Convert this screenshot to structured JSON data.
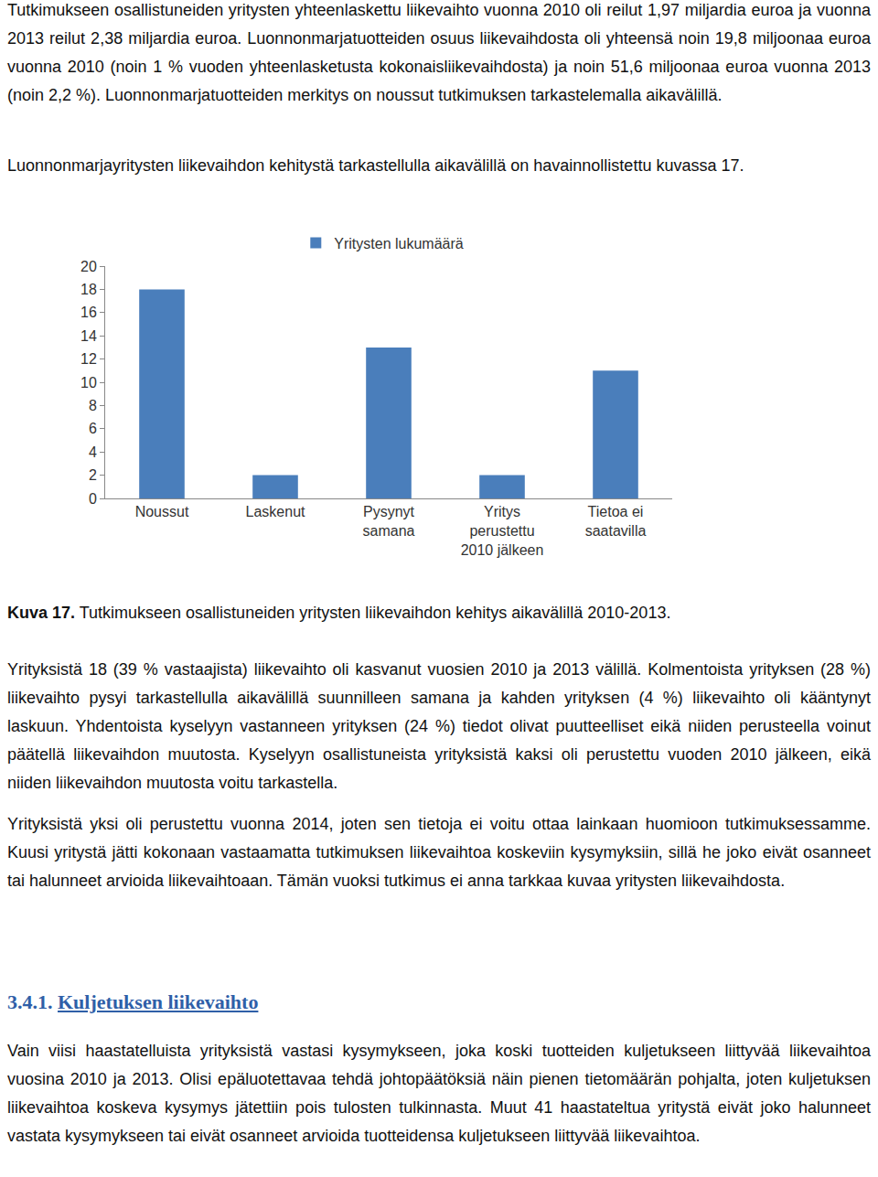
{
  "document": {
    "paragraph_1": "Tutkimukseen osallistuneiden yritysten yhteenlaskettu liikevaihto vuonna 2010 oli reilut 1,97 miljardia euroa ja vuonna 2013 reilut 2,38 miljardia euroa. Luonnonmarjatuotteiden osuus liikevaihdosta oli yhteensä noin 19,8 miljoonaa euroa vuonna 2010 (noin 1 % vuoden yhteenlasketusta kokonaisliikevaihdosta) ja noin 51,6 miljoonaa euroa vuonna 2013 (noin 2,2 %). Luonnonmarjatuotteiden merkitys on noussut tutkimuksen tarkastelemalla aikavälillä.",
    "paragraph_2": "Luonnonmarjayritysten liikevaihdon kehitystä tarkastellulla aikavälillä on havainnollistettu kuvassa 17.",
    "caption": {
      "label": "Kuva 17.",
      "text": "Tutkimukseen osallistuneiden yritysten liikevaihdon kehitys aikavälillä 2010-2013."
    },
    "paragraph_3": "Yrityksistä 18 (39 % vastaajista) liikevaihto oli kasvanut vuosien 2010 ja 2013 välillä. Kolmentoista yrityksen (28 %) liikevaihto pysyi tarkastellulla aikavälillä suunnilleen samana ja kahden yrityksen (4 %) liikevaihto oli kääntynyt laskuun. Yhdentoista kyselyyn vastanneen yrityksen (24 %) tiedot olivat puutteelliset eikä niiden perusteella voinut päätellä liikevaihdon muutosta. Kyselyyn osallistuneista yrityksistä kaksi oli perustettu vuoden 2010 jälkeen, eikä niiden liikevaihdon muutosta voitu tarkastella.",
    "paragraph_4": "Yrityksistä yksi oli perustettu vuonna 2014, joten sen tietoja ei voitu ottaa lainkaan huomioon tutkimuksessamme. Kuusi yritystä jätti kokonaan vastaamatta tutkimuksen liikevaihtoa koskeviin kysymyksiin, sillä he joko eivät osanneet tai halunneet arvioida liikevaihtoaan. Tämän vuoksi tutkimus ei anna tarkkaa kuvaa yritysten liikevaihdosta.",
    "heading": {
      "number": "3.4.1.",
      "title": "Kuljetuksen liikevaihto"
    },
    "paragraph_5": "Vain viisi haastatelluista yrityksistä vastasi kysymykseen, joka koski tuotteiden kuljetukseen liittyvää liikevaihtoa vuosina 2010 ja 2013. Olisi epäluotettavaa tehdä johtopäätöksiä näin pienen tietomäärän pohjalta, joten kuljetuksen liikevaihtoa koskeva kysymys jätettiin pois tulosten tulkinnasta. Muut 41 haastateltua yritystä eivät joko halunneet vastata kysymykseen tai eivät osanneet arvioida tuotteidensa kuljetukseen liittyvää liikevaihtoa."
  },
  "chart_data": {
    "type": "bar",
    "categories": [
      "Noussut",
      "Laskenut",
      "Pysynyt samana",
      "Yritys perustettu 2010 jälkeen",
      "Tietoa ei saatavilla"
    ],
    "series": [
      {
        "name": "Yritysten lukumäärä",
        "color": "#4a7ebb",
        "values": [
          18,
          2,
          13,
          2,
          11
        ]
      }
    ],
    "ylim": [
      0,
      20
    ],
    "yticks": [
      0,
      2,
      4,
      6,
      8,
      10,
      12,
      14,
      16,
      18,
      20
    ],
    "grid": false,
    "legend": "top"
  }
}
